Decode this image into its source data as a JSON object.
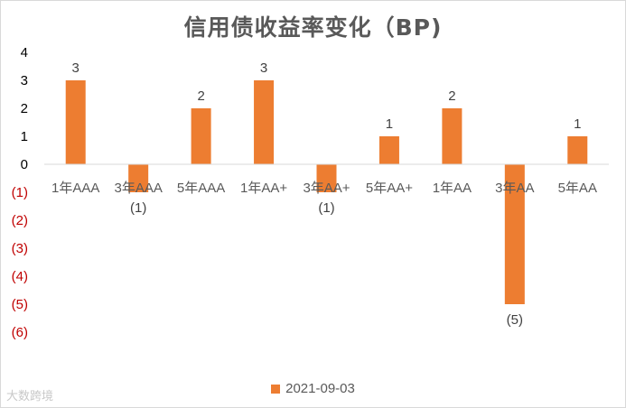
{
  "chart_data": {
    "type": "bar",
    "title": "信用债收益率变化（BP)",
    "categories": [
      "1年AAA",
      "3年AAA",
      "5年AAA",
      "1年AA+",
      "3年AA+",
      "5年AA+",
      "1年AA",
      "3年AA",
      "5年AA"
    ],
    "series": [
      {
        "name": "2021-09-03",
        "values": [
          3,
          -1,
          2,
          3,
          -1,
          1,
          2,
          -5,
          1
        ],
        "color": "#ED7D31"
      }
    ],
    "y_ticks": [
      "4",
      "3",
      "2",
      "1",
      "0",
      "(1)",
      "(2)",
      "(3)",
      "(4)",
      "(5)",
      "(6)"
    ],
    "data_labels": [
      "3",
      "(1)",
      "2",
      "3",
      "(1)",
      "1",
      "2",
      "(5)",
      "1"
    ],
    "ylim": [
      -6,
      4
    ],
    "negative_color": "#C00000",
    "legend_position": "bottom",
    "grid": false
  },
  "watermark": "大数跨境"
}
